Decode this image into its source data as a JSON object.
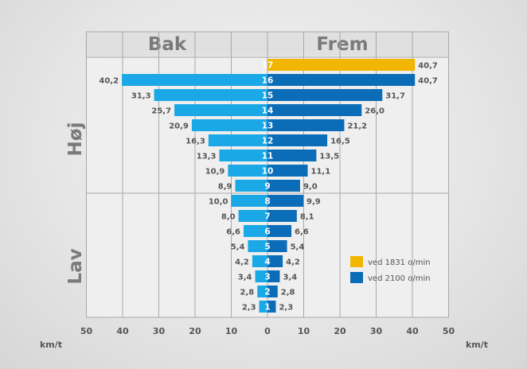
{
  "chart_data": {
    "type": "bar",
    "orientation": "horizontal-butterfly",
    "left_header": "Bak",
    "right_header": "Frem",
    "group_labels": [
      "Høj",
      "Lav"
    ],
    "unit_left": "km/t",
    "unit_right": "km/t",
    "xlim": [
      -50,
      50
    ],
    "x_ticks": [
      50,
      40,
      30,
      20,
      10,
      0,
      10,
      20,
      30,
      40,
      50
    ],
    "grid": true,
    "colors": {
      "reverse": "#1aa9e6",
      "forward": "#0b6db7",
      "highlight": "#f2b500",
      "grid": "#a8a8a8",
      "plot_bg": "#efefef"
    },
    "legend": {
      "position": "bottom-right",
      "entries": [
        {
          "label": "ved 1831 o/min",
          "color": "#f2b500"
        },
        {
          "label": "ved 2100 o/min",
          "color": "#0b6db7"
        }
      ]
    },
    "gears": [
      {
        "gear": "17",
        "reverse": null,
        "reverse_label": "",
        "forward": 40.7,
        "forward_label": "40,7",
        "highlight": true
      },
      {
        "gear": "16",
        "reverse": 40.2,
        "reverse_label": "40,2",
        "forward": 40.7,
        "forward_label": "40,7"
      },
      {
        "gear": "15",
        "reverse": 31.3,
        "reverse_label": "31,3",
        "forward": 31.7,
        "forward_label": "31,7"
      },
      {
        "gear": "14",
        "reverse": 25.7,
        "reverse_label": "25,7",
        "forward": 26.0,
        "forward_label": "26,0"
      },
      {
        "gear": "13",
        "reverse": 20.9,
        "reverse_label": "20,9",
        "forward": 21.2,
        "forward_label": "21,2"
      },
      {
        "gear": "12",
        "reverse": 16.3,
        "reverse_label": "16,3",
        "forward": 16.5,
        "forward_label": "16,5"
      },
      {
        "gear": "11",
        "reverse": 13.3,
        "reverse_label": "13,3",
        "forward": 13.5,
        "forward_label": "13,5"
      },
      {
        "gear": "10",
        "reverse": 10.9,
        "reverse_label": "10,9",
        "forward": 11.1,
        "forward_label": "11,1"
      },
      {
        "gear": "9",
        "reverse": 8.9,
        "reverse_label": "8,9",
        "forward": 9.0,
        "forward_label": "9,0"
      },
      {
        "gear": "8",
        "reverse": 10.0,
        "reverse_label": "10,0",
        "forward": 9.9,
        "forward_label": "9,9"
      },
      {
        "gear": "7",
        "reverse": 8.0,
        "reverse_label": "8,0",
        "forward": 8.1,
        "forward_label": "8,1"
      },
      {
        "gear": "6",
        "reverse": 6.6,
        "reverse_label": "6,6",
        "forward": 6.6,
        "forward_label": "6,6"
      },
      {
        "gear": "5",
        "reverse": 5.4,
        "reverse_label": "5,4",
        "forward": 5.4,
        "forward_label": "5,4"
      },
      {
        "gear": "4",
        "reverse": 4.2,
        "reverse_label": "4,2",
        "forward": 4.2,
        "forward_label": "4,2"
      },
      {
        "gear": "3",
        "reverse": 3.4,
        "reverse_label": "3,4",
        "forward": 3.4,
        "forward_label": "3,4"
      },
      {
        "gear": "2",
        "reverse": 2.8,
        "reverse_label": "2,8",
        "forward": 2.8,
        "forward_label": "2,8"
      },
      {
        "gear": "1",
        "reverse": 2.3,
        "reverse_label": "2,3",
        "forward": 2.3,
        "forward_label": "2,3"
      }
    ]
  }
}
